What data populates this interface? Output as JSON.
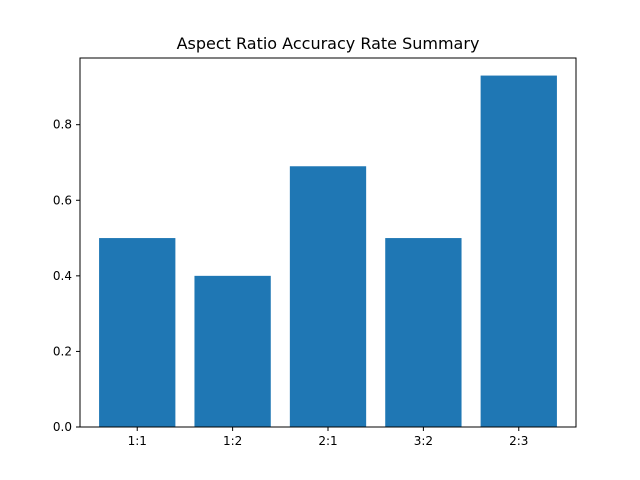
{
  "chart_data": {
    "type": "bar",
    "title": "Aspect Ratio Accuracy Rate Summary",
    "xlabel": "",
    "ylabel": "",
    "categories": [
      "1:1",
      "1:2",
      "2:1",
      "3:2",
      "2:3"
    ],
    "values": [
      0.5,
      0.4,
      0.69,
      0.5,
      0.93
    ],
    "ylim": [
      0,
      0.9765
    ],
    "yticks": [
      0.0,
      0.2,
      0.4,
      0.6,
      0.8
    ],
    "ytick_labels": [
      "0.0",
      "0.2",
      "0.4",
      "0.6",
      "0.8"
    ],
    "bar_color": "#1f77b4",
    "grid": false,
    "legend": "none"
  }
}
